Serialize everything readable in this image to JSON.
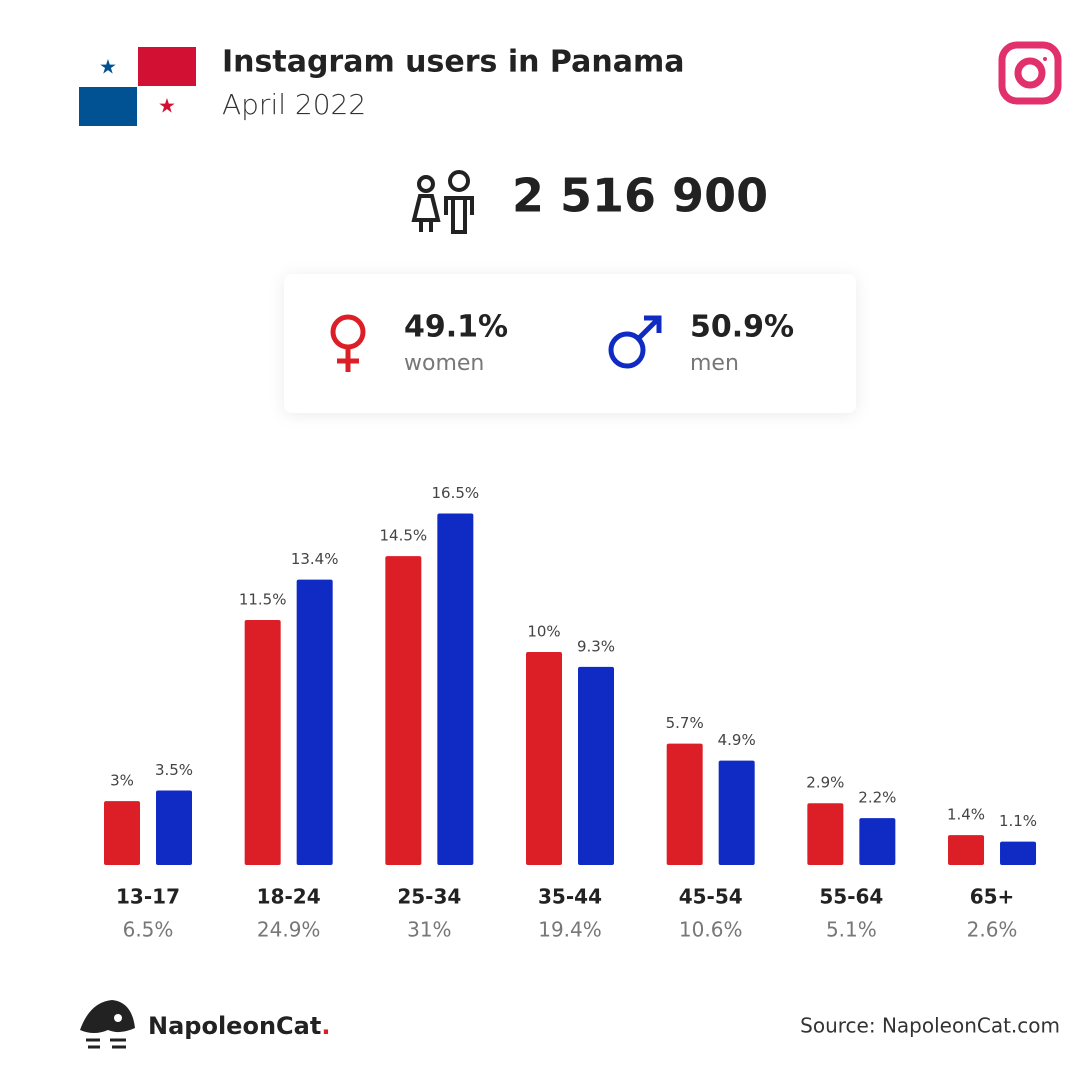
{
  "header": {
    "title": "Instagram users in Panama",
    "subtitle": "April 2022"
  },
  "total_users": "2 516 900",
  "gender_shares": [
    "49.1%",
    "50.9%"
  ],
  "chart_data": {
    "type": "bar",
    "categories": [
      "13-17",
      "18-24",
      "25-34",
      "35-44",
      "45-54",
      "55-64",
      "65+"
    ],
    "category_totals": [
      "6.5%",
      "24.9%",
      "31%",
      "19.4%",
      "10.6%",
      "5.1%",
      "2.6%"
    ],
    "series": [
      {
        "name": "women",
        "color": "#dc1f26",
        "values": [
          3,
          11.5,
          14.5,
          10,
          5.7,
          2.9,
          1.4
        ],
        "value_labels": [
          "3%",
          "11.5%",
          "14.5%",
          "10%",
          "5.7%",
          "2.9%",
          "1.4%"
        ]
      },
      {
        "name": "men",
        "color": "#0f2bc4",
        "values": [
          3.5,
          13.4,
          16.5,
          9.3,
          4.9,
          2.2,
          1.1
        ],
        "value_labels": [
          "3.5%",
          "13.4%",
          "16.5%",
          "9.3%",
          "4.9%",
          "2.2%",
          "1.1%"
        ]
      }
    ]
  },
  "footer": {
    "brand": "NapoleonCat",
    "brand_dot": ".",
    "source": "Source: NapoleonCat.com"
  }
}
